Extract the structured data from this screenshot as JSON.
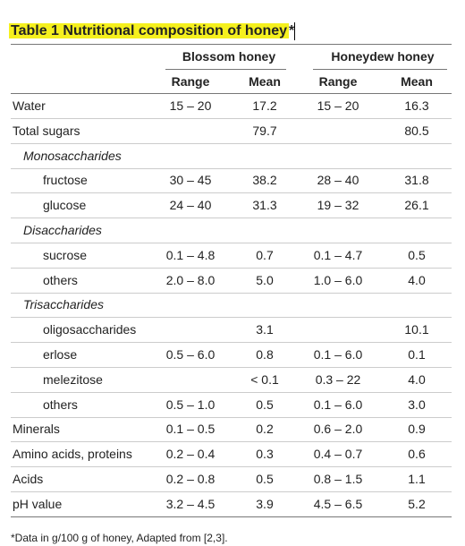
{
  "header": {
    "title": "Table 1 Nutritional composition of honey",
    "title_mark": "*"
  },
  "table": {
    "groups": [
      "Blossom honey",
      "Honeydew honey"
    ],
    "columns": [
      "Range",
      "Mean",
      "Range",
      "Mean"
    ],
    "rows": [
      {
        "kind": "main",
        "label": "Water",
        "cells": [
          "15 – 20",
          "17.2",
          "15 – 20",
          "16.3"
        ]
      },
      {
        "kind": "main",
        "label": "Total sugars",
        "cells": [
          null,
          "79.7",
          null,
          "80.5"
        ]
      },
      {
        "kind": "group",
        "label": "Monosaccharides",
        "cells": [
          null,
          null,
          null,
          null
        ]
      },
      {
        "kind": "sub",
        "label": "fructose",
        "cells": [
          "30 – 45",
          "38.2",
          "28 – 40",
          "31.8"
        ]
      },
      {
        "kind": "sub",
        "label": "glucose",
        "cells": [
          "24 – 40",
          "31.3",
          "19 – 32",
          "26.1"
        ]
      },
      {
        "kind": "group",
        "label": "Disaccharides",
        "cells": [
          null,
          null,
          null,
          null
        ]
      },
      {
        "kind": "sub",
        "label": "sucrose",
        "cells": [
          "0.1 – 4.8",
          "0.7",
          "0.1 – 4.7",
          "0.5"
        ]
      },
      {
        "kind": "sub",
        "label": "others",
        "cells": [
          "2.0 – 8.0",
          "5.0",
          "1.0 – 6.0",
          "4.0"
        ]
      },
      {
        "kind": "group",
        "label": "Trisaccharides",
        "cells": [
          null,
          null,
          null,
          null
        ]
      },
      {
        "kind": "sub",
        "label": "oligosaccharides",
        "cells": [
          null,
          "3.1",
          null,
          "10.1"
        ]
      },
      {
        "kind": "sub",
        "label": "erlose",
        "cells": [
          "0.5 – 6.0",
          "0.8",
          "0.1 – 6.0",
          "0.1"
        ]
      },
      {
        "kind": "sub",
        "label": "melezitose",
        "cells": [
          null,
          "< 0.1",
          "0.3 – 22",
          "4.0"
        ]
      },
      {
        "kind": "sub",
        "label": "others",
        "cells": [
          "0.5 – 1.0",
          "0.5",
          "0.1 – 6.0",
          "3.0"
        ]
      },
      {
        "kind": "main",
        "label": "Minerals",
        "cells": [
          "0.1 – 0.5",
          "0.2",
          "0.6 – 2.0",
          "0.9"
        ]
      },
      {
        "kind": "main",
        "label": "Amino acids, proteins",
        "cells": [
          "0.2 – 0.4",
          "0.3",
          "0.4 – 0.7",
          "0.6"
        ]
      },
      {
        "kind": "main",
        "label": "Acids",
        "cells": [
          "0.2 – 0.8",
          "0.5",
          "0.8 – 1.5",
          "1.1"
        ]
      },
      {
        "kind": "main",
        "label": "pH value",
        "cells": [
          "3.2 – 4.5",
          "3.9",
          "4.5 – 6.5",
          "5.2"
        ]
      }
    ]
  },
  "footnote": "*Data in g/100 g of honey, Adapted from [2,3]."
}
